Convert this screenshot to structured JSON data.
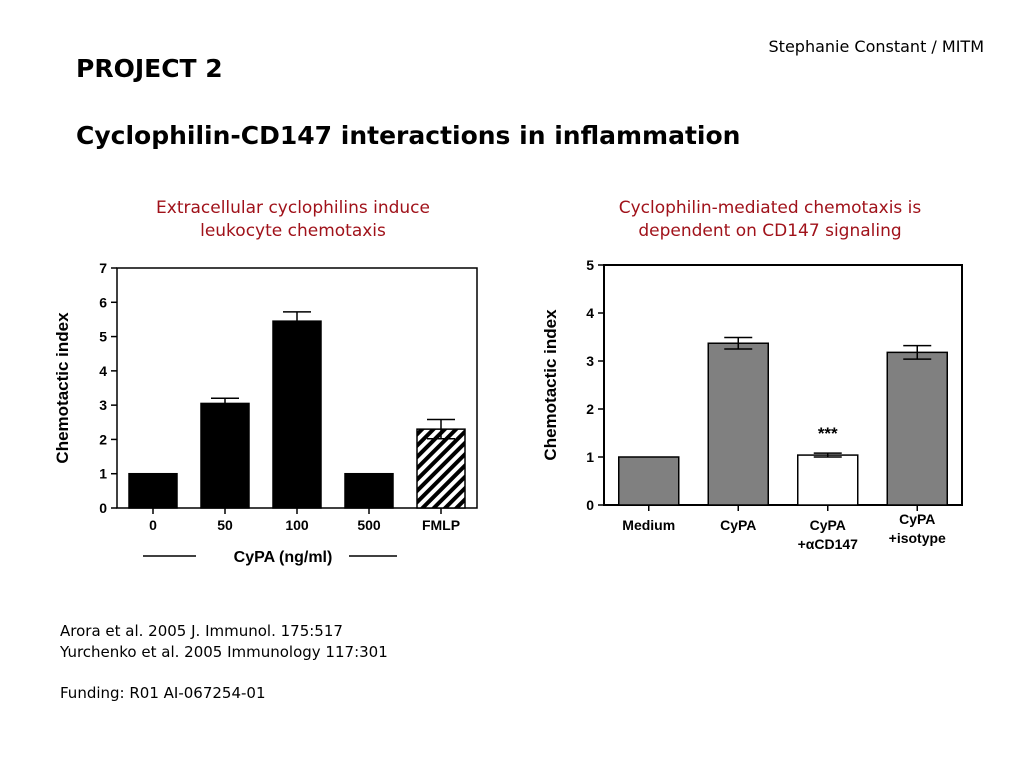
{
  "header": {
    "author": "Stephanie Constant / MITM",
    "project": "PROJECT 2",
    "subtitle": "Cyclophilin-CD147 interactions in inflammation"
  },
  "chart_data": [
    {
      "type": "bar",
      "title_lines": [
        "Extracellular cyclophilins induce",
        "leukocyte chemotaxis"
      ],
      "categories": [
        "0",
        "50",
        "100",
        "500",
        "FMLP"
      ],
      "values": [
        1.0,
        3.05,
        5.45,
        1.0,
        2.3
      ],
      "errors": [
        0,
        0.15,
        0.27,
        0,
        0.28
      ],
      "bar_colors": [
        "#000000",
        "#000000",
        "#000000",
        "#000000",
        "hatched"
      ],
      "xlabel": "CyPA (ng/ml)",
      "ylabel": "Chemotactic index",
      "ylim": [
        0,
        7
      ],
      "yticks": [
        "0",
        "1",
        "2",
        "3",
        "4",
        "5",
        "6",
        "7"
      ]
    },
    {
      "type": "bar",
      "title_lines": [
        "Cyclophilin-mediated chemotaxis is",
        "dependent on CD147 signaling"
      ],
      "categories": [
        [
          "Medium"
        ],
        [
          "CyPA"
        ],
        [
          "CyPA",
          "+αCD147"
        ],
        [
          "CyPA",
          "+isotype"
        ]
      ],
      "values": [
        1.0,
        3.37,
        1.04,
        3.18
      ],
      "errors": [
        0,
        0.12,
        0.04,
        0.14
      ],
      "bar_colors": [
        "#808080",
        "#808080",
        "#ffffff",
        "#808080"
      ],
      "annotations": [
        "",
        "",
        "***",
        ""
      ],
      "xlabel": "",
      "ylabel": "Chemotactic index",
      "ylim": [
        0,
        5
      ],
      "yticks": [
        "0",
        "1",
        "2",
        "3",
        "4",
        "5"
      ]
    }
  ],
  "references": {
    "lines": [
      "Arora et al. 2005 J. Immunol. 175:517",
      "Yurchenko et al. 2005 Immunology 117:301"
    ],
    "funding": "Funding: R01 AI-067254-01"
  }
}
